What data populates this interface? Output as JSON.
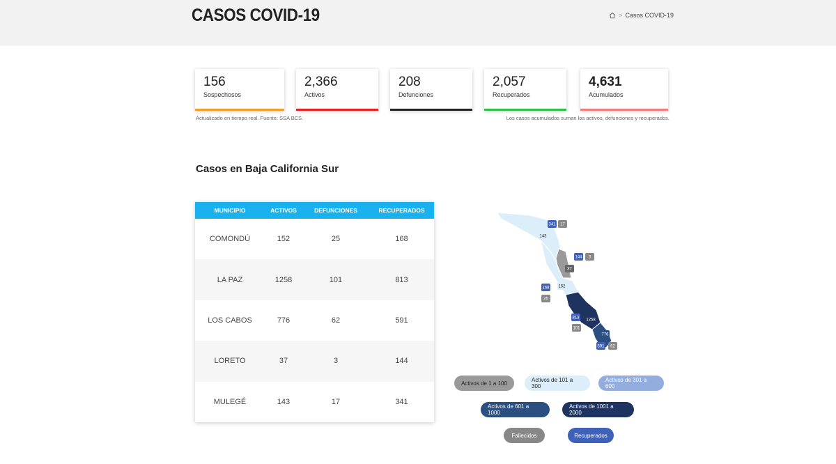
{
  "header": {
    "title": "CASOS COVID-19",
    "breadcrumb_current": "Casos COVID-19",
    "breadcrumb_sep": ">"
  },
  "stats": [
    {
      "value": "156",
      "label": "Sospechosos",
      "color": "#f0a02a",
      "bold": false
    },
    {
      "value": "2,366",
      "label": "Activos",
      "color": "#e02424",
      "bold": false
    },
    {
      "value": "208",
      "label": "Defunciones",
      "color": "#222222",
      "bold": false
    },
    {
      "value": "2,057",
      "label": "Recuperados",
      "color": "#2ec04a",
      "bold": false
    },
    {
      "value": "4,631",
      "label": "Acumulados",
      "color": "#f07e7e",
      "bold": true
    }
  ],
  "notes": {
    "left": "Actualizado en tiempo real. Fuente: SSA BCS.",
    "right": "Los casos acumulados suman los activos, defunciones y recuperados."
  },
  "section_title": "Casos en Baja California Sur",
  "table": {
    "headers": [
      "MUNICIPIO",
      "ACTIVOS",
      "DEFUNCIONES",
      "RECUPERADOS"
    ],
    "rows": [
      [
        "COMONDÚ",
        "152",
        "25",
        "168"
      ],
      [
        "LA PAZ",
        "1258",
        "101",
        "813"
      ],
      [
        "LOS CABOS",
        "776",
        "62",
        "591"
      ],
      [
        "LORETO",
        "37",
        "3",
        "144"
      ],
      [
        "MULEGÉ",
        "143",
        "17",
        "341"
      ]
    ],
    "header_color": "#1ab1ef"
  },
  "map_labels": {
    "mulege_rec": "341",
    "mulege_def": "17",
    "mulege_act": "143",
    "loreto_rec": "144",
    "loreto_def": "3",
    "loreto_act": "37",
    "comondu_rec": "168",
    "comondu_def": "25",
    "comondu_act": "152",
    "lapaz_rec": "813",
    "lapaz_def": "101",
    "lapaz_act": "1258",
    "loscabos_act": "776",
    "loscabos_rec": "591",
    "loscabos_def": "62"
  },
  "legend": [
    {
      "label": "Activos de 1 a 100",
      "bg": "#9a9a9a",
      "fg": "#222"
    },
    {
      "label": "Activos de 101 a 300",
      "bg": "#dceefa",
      "fg": "#222"
    },
    {
      "label": "Activos de 301 a 600",
      "bg": "#93aede",
      "fg": "#fff"
    },
    {
      "label": "Activos de 601 a 1000",
      "bg": "#2a4f80",
      "fg": "#fff"
    },
    {
      "label": "Activos de 1001 a 2000",
      "bg": "#1e3360",
      "fg": "#fff"
    },
    {
      "label": "Fallecidos",
      "bg": "#888888",
      "fg": "#fff"
    },
    {
      "label": "Recuperados",
      "bg": "#3f62b8",
      "fg": "#fff"
    }
  ]
}
